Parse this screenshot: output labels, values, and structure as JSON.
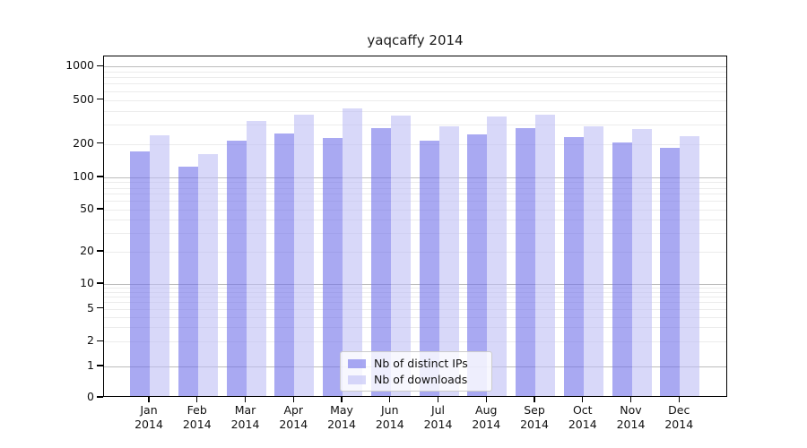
{
  "title": "yaqcaffy 2014",
  "chart_data": {
    "type": "bar",
    "title": "yaqcaffy 2014",
    "categories": [
      "Jan",
      "Feb",
      "Mar",
      "Apr",
      "May",
      "Jun",
      "Jul",
      "Aug",
      "Sep",
      "Oct",
      "Nov",
      "Dec"
    ],
    "year_label": "2014",
    "series": [
      {
        "name": "Nb of distinct IPs",
        "color": "#6f6fe9",
        "values": [
          170,
          125,
          216,
          248,
          228,
          276,
          215,
          246,
          278,
          230,
          206,
          185
        ]
      },
      {
        "name": "Nb of downloads",
        "color": "#bebef5",
        "values": [
          242,
          163,
          322,
          368,
          420,
          358,
          288,
          354,
          368,
          290,
          272,
          236
        ]
      }
    ],
    "xlabel": "",
    "ylabel": "",
    "yscale": "symlog",
    "yticks": [
      0,
      1,
      2,
      5,
      10,
      20,
      50,
      100,
      200,
      500,
      1000
    ],
    "ylim": [
      0,
      1240
    ],
    "grid": true,
    "legend_position": "lower center"
  },
  "colors": {
    "bar_alpha": 0.6,
    "grid_major": "#bcbcbc",
    "grid_minor": "#ececec",
    "spine": "#000000",
    "text": "#111111"
  }
}
